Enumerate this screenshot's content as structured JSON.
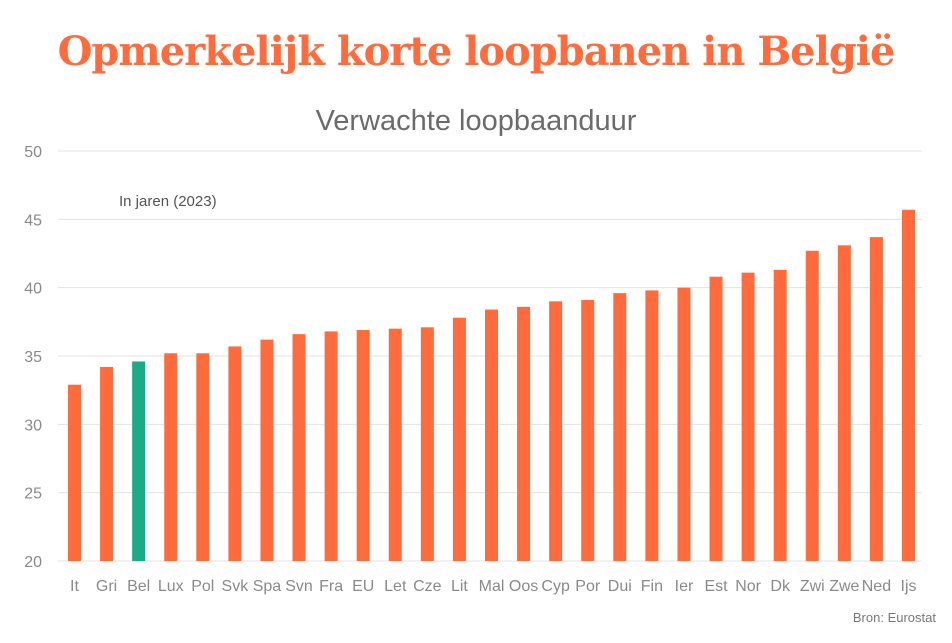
{
  "header": {
    "title": "Opmerkelijk korte loopbanen in België"
  },
  "source": "Bron: Eurostat",
  "colors": {
    "accent": "#ff6b3d",
    "highlight": "#1bab87",
    "grid": "#e3e3e3",
    "axis_text": "#8a8a8a",
    "title": "#ff6b3d"
  },
  "chart_data": {
    "type": "bar",
    "title": "Verwachte loopbaanduur",
    "subtitle": "In jaren (2023)",
    "xlabel": "",
    "ylabel": "",
    "ylim": [
      20,
      50
    ],
    "yticks": [
      20,
      25,
      30,
      35,
      40,
      45,
      50
    ],
    "grid": true,
    "highlight_category": "Bel",
    "categories": [
      "It",
      "Gri",
      "Bel",
      "Lux",
      "Pol",
      "Svk",
      "Spa",
      "Svn",
      "Fra",
      "EU",
      "Let",
      "Cze",
      "Lit",
      "Mal",
      "Oos",
      "Cyp",
      "Por",
      "Dui",
      "Fin",
      "Ier",
      "Est",
      "Nor",
      "Dk",
      "Zwi",
      "Zwe",
      "Ned",
      "Ijs"
    ],
    "values": [
      32.9,
      34.2,
      34.6,
      35.2,
      35.2,
      35.7,
      36.2,
      36.6,
      36.8,
      36.9,
      37.0,
      37.1,
      37.8,
      38.4,
      38.6,
      39.0,
      39.1,
      39.6,
      39.8,
      40.0,
      40.8,
      41.1,
      41.3,
      42.7,
      43.1,
      43.7,
      45.7
    ]
  }
}
